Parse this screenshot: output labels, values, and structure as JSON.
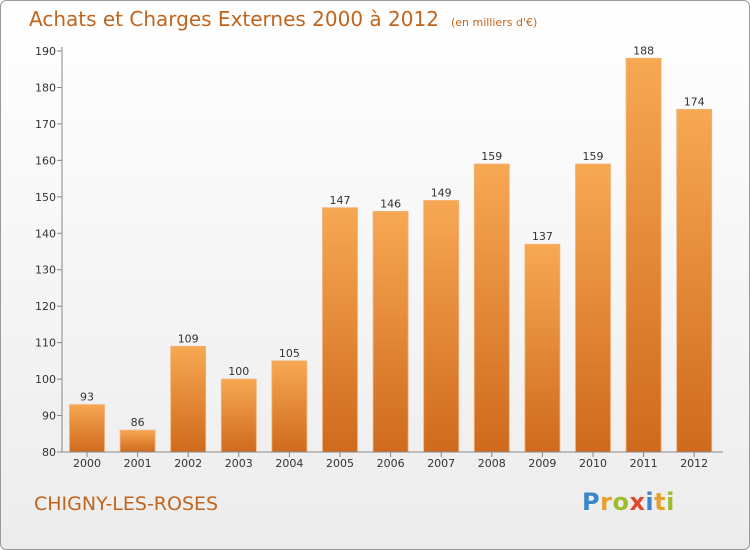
{
  "header": {
    "title": "Achats et Charges Externes 2000 à 2012",
    "unit": "(en milliers d'€)"
  },
  "footer": {
    "commune": "CHIGNY-LES-ROSES",
    "logo_text": "Proxiti",
    "logo_colors": [
      "#3a86c8",
      "#e8a02a",
      "#9bbd2e",
      "#e04a2a",
      "#3a86c8",
      "#e8a02a",
      "#9bbd2e"
    ]
  },
  "colors": {
    "accent": "#c0651e",
    "bar_top": "#f7a852",
    "bar_bottom": "#cf6a1d",
    "axis": "#888888",
    "text": "#333333"
  },
  "chart_data": {
    "type": "bar",
    "categories": [
      "2000",
      "2001",
      "2002",
      "2003",
      "2004",
      "2005",
      "2006",
      "2007",
      "2008",
      "2009",
      "2010",
      "2011",
      "2012"
    ],
    "values": [
      93,
      86,
      109,
      100,
      105,
      147,
      146,
      149,
      159,
      137,
      159,
      188,
      174
    ],
    "data_labels": [
      "93",
      "86",
      "109",
      "100",
      "105",
      "147",
      "146",
      "149",
      "159",
      "137",
      "159",
      "188",
      "174"
    ],
    "yticks": [
      80,
      90,
      100,
      110,
      120,
      130,
      140,
      150,
      160,
      170,
      180,
      190
    ],
    "ylim": [
      80,
      190
    ],
    "grid": false
  }
}
